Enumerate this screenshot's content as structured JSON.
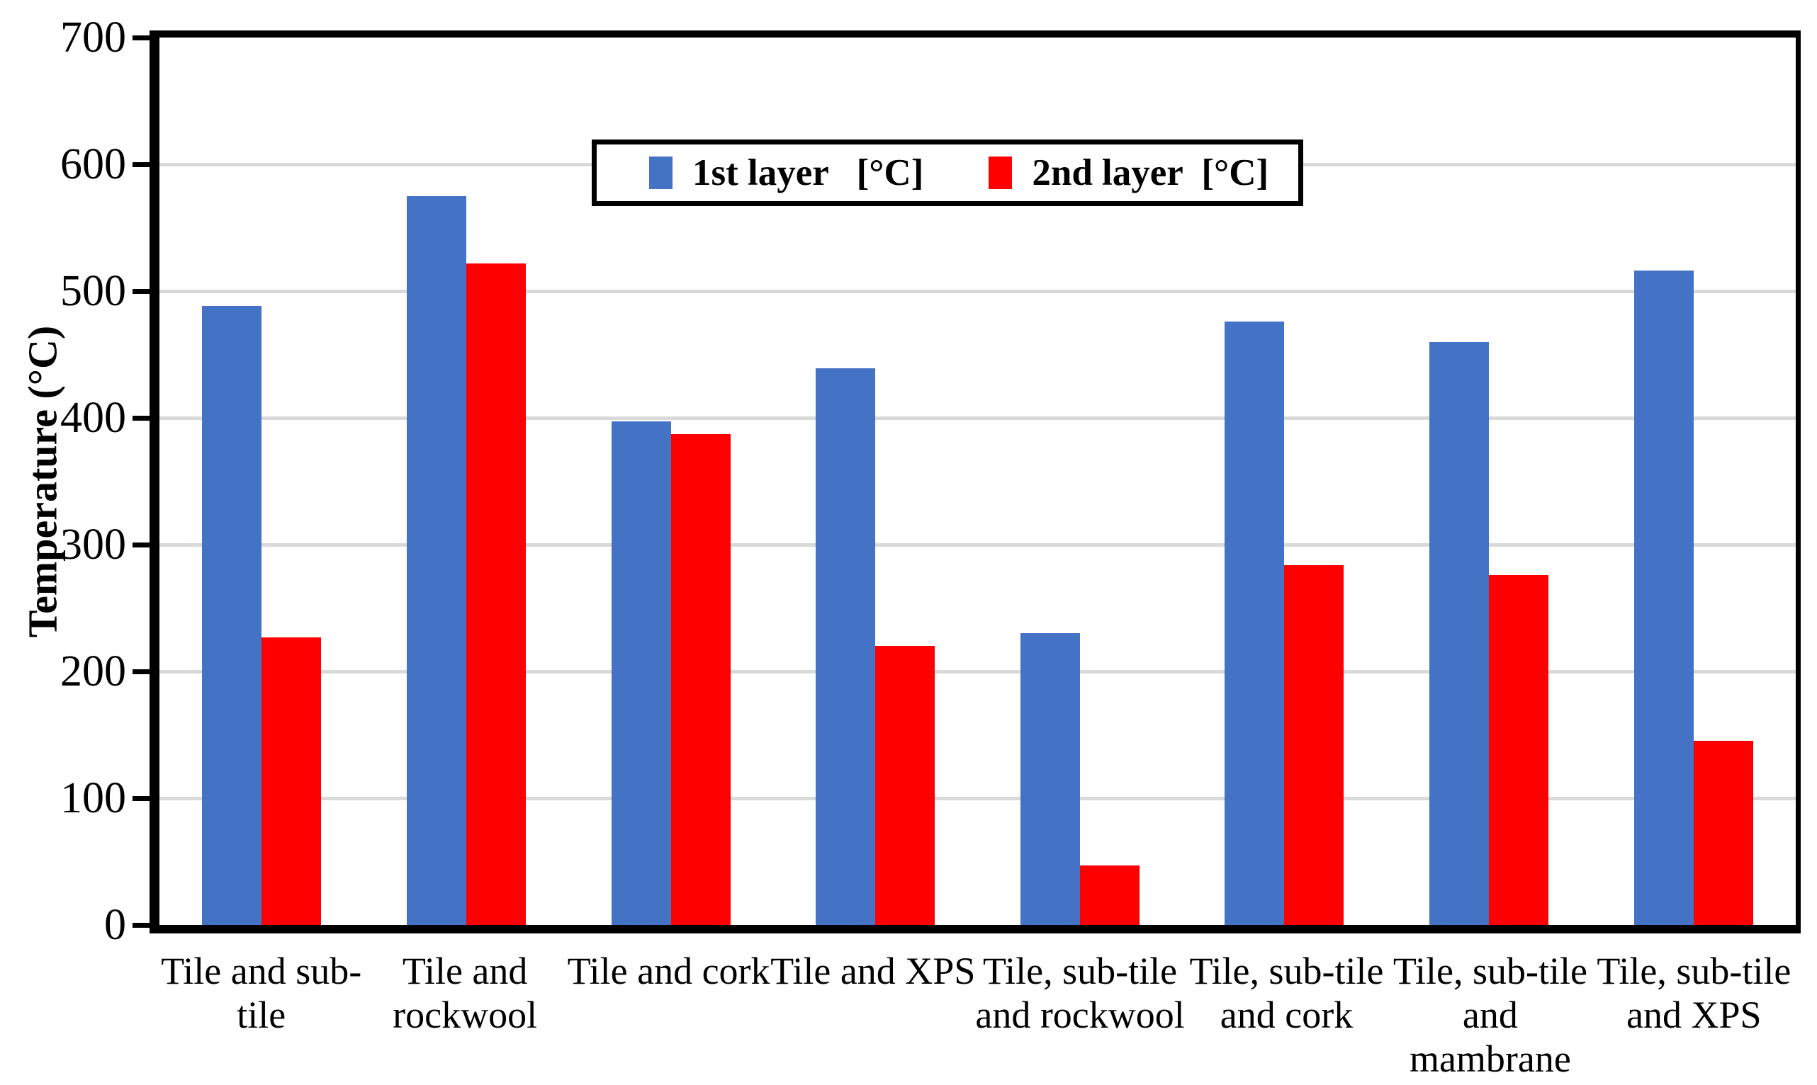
{
  "chart_data": {
    "type": "bar",
    "title": "",
    "ylabel": "Temperature (°C)",
    "xlabel": "",
    "ylim": [
      0,
      700
    ],
    "ytick_interval": 100,
    "grid": true,
    "legend_position": "top-center-inside",
    "background_color": "#FFFFFF",
    "gridline_color": "#D9D9D9",
    "axis_color": "#000000",
    "categories": [
      "Tile and sub-tile",
      "Tile and rockwool",
      "Tile and cork",
      "Tile and XPS",
      "Tile, sub-tile and rockwool",
      "Tile, sub-tile and cork",
      "Tile, sub-tile and mambrane",
      "Tile, sub-tile and XPS"
    ],
    "category_label_lines": [
      [
        "Tile and sub-",
        "tile"
      ],
      [
        "Tile and",
        "rockwool"
      ],
      [
        "Tile and cork"
      ],
      [
        "Tile and XPS"
      ],
      [
        "Tile, sub-tile",
        "and rockwool"
      ],
      [
        "Tile, sub-tile",
        "and cork"
      ],
      [
        "Tile, sub-tile",
        "and",
        "mambrane"
      ],
      [
        "Tile, sub-tile",
        "and XPS"
      ]
    ],
    "series": [
      {
        "name": "1st layer   [°C]",
        "color": "#4472C4",
        "values": [
          488,
          575,
          397,
          439,
          230,
          476,
          460,
          516
        ]
      },
      {
        "name": "2nd layer  [°C]",
        "color": "#FF0000",
        "values": [
          227,
          522,
          387,
          220,
          47,
          284,
          276,
          145
        ]
      }
    ]
  }
}
